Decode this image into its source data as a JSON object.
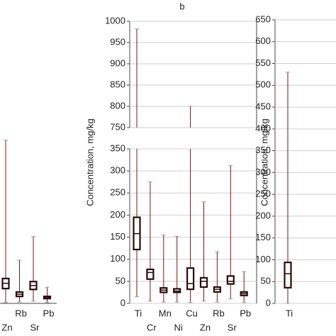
{
  "chart_data": [
    {
      "type": "box",
      "categories": [
        "Zn",
        "Rb",
        "Sr",
        "Pb"
      ],
      "color": "#7a1414",
      "ylim": [
        0,
        650
      ],
      "boxes": [
        {
          "min": 2,
          "q1": 34,
          "median": 46,
          "q3": 57,
          "max": 374
        },
        {
          "min": 3,
          "q1": 16,
          "median": 21,
          "q3": 26,
          "max": 99
        },
        {
          "min": 5,
          "q1": 32,
          "median": 41,
          "q3": 50,
          "max": 153
        },
        {
          "min": 2,
          "q1": 11,
          "median": 14,
          "q3": 16,
          "max": 37
        }
      ]
    },
    {
      "type": "box",
      "title": "b",
      "y_label": "Concentration, mg/kg",
      "color": "#7a1414",
      "categories": [
        "Ti",
        "Cr",
        "Mn",
        "Ni",
        "Cu",
        "Zn",
        "Rb",
        "Sr",
        "Pb"
      ],
      "ylim": [
        0,
        1000
      ],
      "axis_break": [
        350,
        750
      ],
      "grid": true,
      "yticks": [
        0,
        50,
        100,
        150,
        200,
        250,
        300,
        350,
        750,
        800,
        850,
        900,
        950,
        1000
      ],
      "boxes": [
        {
          "min": 15,
          "q1": 122,
          "median": 158,
          "q3": 195,
          "max": 982
        },
        {
          "min": 5,
          "q1": 55,
          "median": 70,
          "q3": 77,
          "max": 275
        },
        {
          "min": 3,
          "q1": 25,
          "median": 30,
          "q3": 35,
          "max": 155
        },
        {
          "min": 3,
          "q1": 25,
          "median": 28,
          "q3": 33,
          "max": 152
        },
        {
          "min": 2,
          "q1": 32,
          "median": 45,
          "q3": 80,
          "max": 800
        },
        {
          "min": 5,
          "q1": 37,
          "median": 50,
          "q3": 58,
          "max": 230
        },
        {
          "min": 3,
          "q1": 26,
          "median": 32,
          "q3": 37,
          "max": 117
        },
        {
          "min": 10,
          "q1": 44,
          "median": 50,
          "q3": 62,
          "max": 312
        },
        {
          "min": 2,
          "q1": 18,
          "median": 22,
          "q3": 26,
          "max": 72
        }
      ]
    },
    {
      "type": "box",
      "y_label": "Concentration, mg/kg",
      "color": "#7a1414",
      "categories": [
        "Ti"
      ],
      "ylim": [
        0,
        650
      ],
      "grid": true,
      "yticks": [
        0,
        50,
        100,
        150,
        200,
        250,
        300,
        350,
        400,
        450,
        500,
        550,
        600,
        650
      ],
      "boxes": [
        {
          "min": 0,
          "q1": 36,
          "median": 68,
          "q3": 94,
          "max": 530
        }
      ]
    }
  ]
}
